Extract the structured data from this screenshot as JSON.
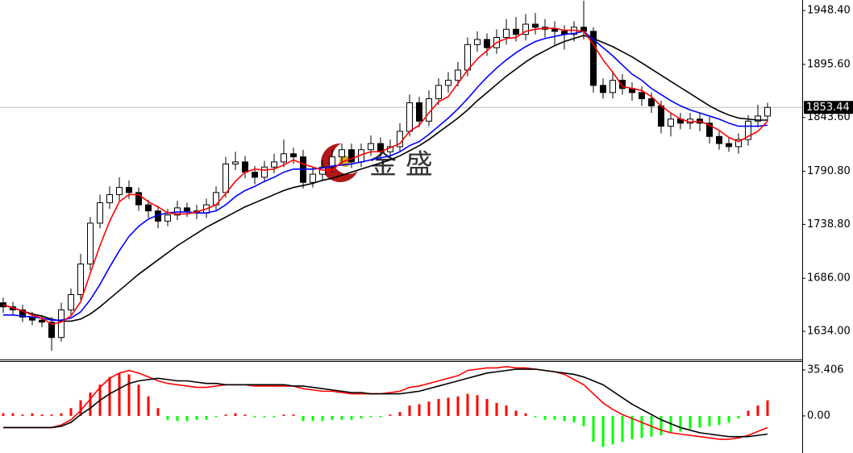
{
  "chart_data": [
    {
      "type": "candlestick",
      "watermark": "金 盛",
      "open": [
        1662,
        1658,
        1655,
        1648,
        1645,
        1643,
        1628,
        1655,
        1670,
        1700,
        1740,
        1760,
        1768,
        1775,
        1770,
        1758,
        1752,
        1742,
        1748,
        1755,
        1752,
        1750,
        1758,
        1770,
        1798,
        1800,
        1790,
        1785,
        1795,
        1800,
        1808,
        1805,
        1780,
        1788,
        1795,
        1805,
        1812,
        1800,
        1812,
        1818,
        1810,
        1815,
        1830,
        1858,
        1840,
        1862,
        1875,
        1880,
        1890,
        1915,
        1920,
        1912,
        1922,
        1930,
        1925,
        1935,
        1932,
        1930,
        1928,
        1925,
        1932,
        1928,
        1875,
        1868,
        1880,
        1872,
        1868,
        1862,
        1855,
        1835,
        1842,
        1838,
        1842,
        1838,
        1825,
        1818,
        1815,
        1822,
        1840,
        1845
      ],
      "high": [
        1667,
        1663,
        1660,
        1653,
        1650,
        1648,
        1662,
        1676,
        1710,
        1746,
        1768,
        1776,
        1785,
        1782,
        1775,
        1763,
        1757,
        1754,
        1762,
        1760,
        1758,
        1764,
        1776,
        1805,
        1810,
        1806,
        1796,
        1801,
        1808,
        1822,
        1814,
        1812,
        1795,
        1802,
        1812,
        1818,
        1818,
        1818,
        1826,
        1824,
        1822,
        1838,
        1866,
        1864,
        1870,
        1882,
        1888,
        1898,
        1922,
        1928,
        1926,
        1930,
        1940,
        1942,
        1945,
        1946,
        1940,
        1938,
        1934,
        1938,
        1958,
        1932,
        1882,
        1888,
        1886,
        1878,
        1874,
        1868,
        1860,
        1848,
        1848,
        1848,
        1848,
        1844,
        1830,
        1824,
        1828,
        1846,
        1856,
        1858
      ],
      "low": [
        1652,
        1650,
        1643,
        1640,
        1638,
        1615,
        1624,
        1650,
        1665,
        1694,
        1735,
        1754,
        1762,
        1764,
        1752,
        1745,
        1735,
        1737,
        1743,
        1746,
        1744,
        1745,
        1752,
        1765,
        1792,
        1784,
        1778,
        1780,
        1789,
        1795,
        1798,
        1774,
        1775,
        1782,
        1790,
        1798,
        1794,
        1795,
        1806,
        1803,
        1805,
        1810,
        1825,
        1834,
        1835,
        1856,
        1868,
        1874,
        1884,
        1908,
        1904,
        1906,
        1915,
        1918,
        1919,
        1925,
        1922,
        1915,
        1910,
        1918,
        1920,
        1868,
        1862,
        1862,
        1866,
        1860,
        1855,
        1848,
        1828,
        1825,
        1832,
        1832,
        1830,
        1818,
        1812,
        1810,
        1808,
        1816,
        1834,
        1840
      ],
      "close": [
        1658,
        1655,
        1648,
        1645,
        1643,
        1628,
        1655,
        1670,
        1700,
        1740,
        1760,
        1768,
        1775,
        1770,
        1758,
        1752,
        1742,
        1748,
        1755,
        1752,
        1750,
        1758,
        1770,
        1798,
        1800,
        1790,
        1785,
        1795,
        1800,
        1808,
        1805,
        1780,
        1788,
        1795,
        1805,
        1812,
        1800,
        1812,
        1818,
        1810,
        1815,
        1830,
        1858,
        1840,
        1862,
        1875,
        1880,
        1890,
        1915,
        1920,
        1912,
        1922,
        1930,
        1925,
        1935,
        1932,
        1930,
        1928,
        1925,
        1932,
        1928,
        1875,
        1868,
        1880,
        1872,
        1868,
        1862,
        1855,
        1835,
        1842,
        1838,
        1842,
        1838,
        1825,
        1818,
        1815,
        1822,
        1840,
        1845,
        1853.44
      ],
      "up_color": "#ffffff",
      "down_color": "#000000",
      "series": [
        {
          "color": "#000000",
          "values": [
            1660,
            1657,
            1654,
            1651,
            1649,
            1646,
            1644,
            1644,
            1646,
            1651,
            1658,
            1666,
            1674,
            1682,
            1690,
            1697,
            1704,
            1711,
            1718,
            1724,
            1730,
            1736,
            1741,
            1746,
            1751,
            1756,
            1760,
            1764,
            1768,
            1772,
            1775,
            1777,
            1779,
            1782,
            1784,
            1787,
            1790,
            1793,
            1796,
            1799,
            1802,
            1806,
            1811,
            1816,
            1822,
            1829,
            1836,
            1843,
            1851,
            1860,
            1868,
            1876,
            1884,
            1891,
            1898,
            1904,
            1909,
            1914,
            1918,
            1921,
            1924,
            1921,
            1917,
            1913,
            1908,
            1903,
            1897,
            1891,
            1885,
            1879,
            1873,
            1867,
            1861,
            1855,
            1850,
            1846,
            1843,
            1842,
            1841,
            1841
          ]
        },
        {
          "color": "#0000ff",
          "values": [
            1650,
            1650,
            1649,
            1648,
            1647,
            1645,
            1645,
            1647,
            1653,
            1665,
            1680,
            1697,
            1713,
            1727,
            1737,
            1744,
            1748,
            1750,
            1751,
            1751,
            1750,
            1750,
            1752,
            1758,
            1766,
            1772,
            1776,
            1781,
            1785,
            1790,
            1793,
            1793,
            1793,
            1794,
            1796,
            1797,
            1798,
            1800,
            1802,
            1804,
            1806,
            1810,
            1816,
            1820,
            1827,
            1835,
            1843,
            1852,
            1862,
            1873,
            1883,
            1892,
            1900,
            1907,
            1913,
            1918,
            1921,
            1923,
            1925,
            1926,
            1928,
            1920,
            1912,
            1904,
            1895,
            1886,
            1880,
            1872,
            1866,
            1860,
            1855,
            1851,
            1848,
            1845,
            1842,
            1838,
            1835,
            1835,
            1835,
            1836
          ]
        },
        {
          "color": "#ff0000",
          "values": [
            1660,
            1657,
            1654,
            1650,
            1647,
            1641,
            1643,
            1649,
            1663,
            1691,
            1718,
            1742,
            1761,
            1768,
            1768,
            1761,
            1756,
            1750,
            1749,
            1749,
            1751,
            1754,
            1758,
            1769,
            1781,
            1790,
            1793,
            1792,
            1793,
            1797,
            1802,
            1798,
            1795,
            1792,
            1792,
            1800,
            1803,
            1807,
            1810,
            1810,
            1814,
            1818,
            1830,
            1836,
            1848,
            1859,
            1864,
            1877,
            1890,
            1901,
            1909,
            1917,
            1921,
            1922,
            1928,
            1930,
            1931,
            1931,
            1929,
            1929,
            1928,
            1915,
            1900,
            1888,
            1874,
            1872,
            1870,
            1864,
            1855,
            1848,
            1842,
            1839,
            1840,
            1836,
            1831,
            1824,
            1820,
            1825,
            1830,
            1840
          ]
        }
      ],
      "last_price": 1853.44,
      "ylim": [
        1607.2,
        1958.7
      ],
      "yticks": [
        {
          "value": 1948.4,
          "label": "1948.40"
        },
        {
          "value": 1895.6,
          "label": "1895.60"
        },
        {
          "value": 1843.6,
          "label": "1843.60"
        },
        {
          "value": 1790.8,
          "label": "1790.80"
        },
        {
          "value": 1738.8,
          "label": "1738.80"
        },
        {
          "value": 1686,
          "label": "1686.00"
        },
        {
          "value": 1634,
          "label": "1634.00"
        }
      ]
    },
    {
      "type": "macd",
      "histogram": {
        "up_color": "#ff0000",
        "down_color": "#00ff00",
        "values": [
          2,
          2,
          1,
          2,
          1,
          1,
          2,
          6,
          12,
          18,
          24,
          30,
          33,
          32,
          24,
          15,
          6,
          -3,
          -4,
          -4,
          -3,
          -3,
          -1,
          1,
          2,
          1,
          -1,
          -1,
          -1,
          1,
          1,
          -4,
          -4,
          -4,
          -3,
          -3,
          -3,
          -2,
          -1,
          -1,
          1,
          3,
          8,
          9,
          11,
          13,
          14,
          15,
          17,
          16,
          13,
          10,
          8,
          4,
          2,
          -1,
          -3,
          -3,
          -4,
          -5,
          -8,
          -20,
          -24,
          -22,
          -20,
          -18,
          -17,
          -16,
          -15,
          -13,
          -12,
          -10,
          -9,
          -8,
          -7,
          -5,
          -2,
          4,
          8,
          12
        ]
      },
      "series": [
        {
          "color": "#ff0000",
          "values": [
            -9,
            -9,
            -9,
            -9,
            -9,
            -9,
            -7,
            -3,
            4,
            13,
            22,
            29,
            33,
            35,
            33,
            30,
            27,
            25,
            24,
            23,
            22,
            22,
            23,
            24,
            24,
            24,
            23,
            23,
            23,
            23,
            23,
            21,
            20,
            19,
            19,
            18,
            17,
            17,
            17,
            17,
            18,
            19,
            22,
            23,
            25,
            27,
            29,
            31,
            35,
            36,
            37,
            37,
            38,
            37,
            37,
            36,
            35,
            34,
            32,
            28,
            24,
            17,
            10,
            5,
            1,
            -2,
            -5,
            -8,
            -11,
            -13,
            -14,
            -15,
            -16,
            -17,
            -18,
            -18,
            -17,
            -15,
            -12,
            -9
          ]
        },
        {
          "color": "#000000",
          "values": [
            -9,
            -9,
            -9,
            -9,
            -9,
            -9,
            -8,
            -5,
            1,
            6,
            12,
            17,
            21,
            25,
            27,
            28,
            29,
            28,
            27,
            27,
            26,
            25,
            25,
            24,
            24,
            24,
            24,
            24,
            24,
            24,
            23,
            23,
            22,
            21,
            20,
            19,
            18,
            18,
            17,
            17,
            17,
            17,
            18,
            19,
            21,
            23,
            25,
            27,
            29,
            31,
            33,
            34,
            35,
            36,
            36,
            36,
            35,
            34,
            33,
            32,
            30,
            27,
            24,
            19,
            14,
            9,
            5,
            1,
            -3,
            -6,
            -9,
            -11,
            -13,
            -14,
            -15,
            -16,
            -16,
            -16,
            -15,
            -14
          ]
        }
      ],
      "ylim": [
        -28.6,
        41.6
      ],
      "yticks": [
        35.406,
        {
          "value": 0,
          "label": "0.00"
        }
      ]
    }
  ]
}
